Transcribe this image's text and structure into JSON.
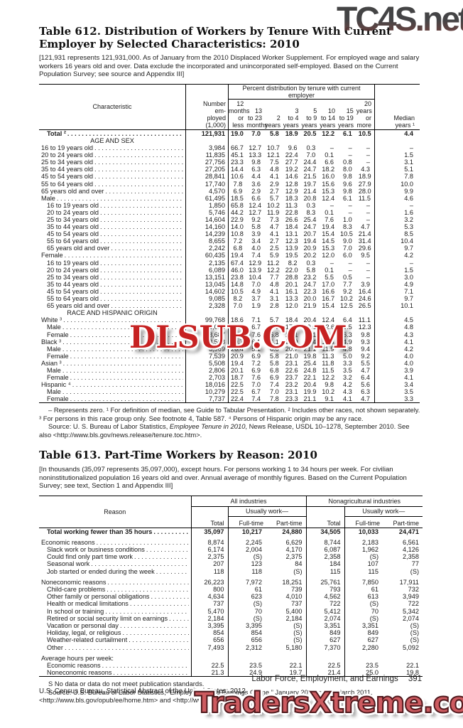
{
  "colors": {
    "watermark_mid_red": "#c62222",
    "watermark_bottom_rose": "#cd5b60",
    "watermark_top_gray": "#39393b",
    "rule_black": "#000000"
  },
  "watermarks": {
    "top": "TC4S.net",
    "middle": "DLSUB.COM",
    "bottom": "TradersXtreme.com"
  },
  "table612": {
    "title": "Table 612. Distribution of Workers by Tenure With Current Employer by Selected Characteristics: 2010",
    "note": "[121,931 represents 121,931,000. As of January from the 2010 Displaced Worker Supplement. For employed wage and salary workers 16 years  old and over. Data exclude the incorporated and unincorporated self-employed. Based on the Current Population Survey; see source and Appendix III]",
    "header": {
      "characteristic": "Characteristic",
      "number_employed": "Number\nem-\nployed\n(1,000)",
      "group": "Percent distribution by tenure with current employer",
      "columns": [
        "12\nmonths\nor less",
        "13\nto 23\nmonths",
        "2\nyears",
        "3\nto 4\nyears",
        "5\nto 9\nyears",
        "10\nto 14\nyears",
        "15\nto 19\nyears",
        "20\nyears\nor more"
      ],
      "median": "Median\nyears ¹"
    },
    "rows": [
      {
        "label": "Total ²",
        "style": "total",
        "indent": 1,
        "values": [
          "121,931",
          "19.0",
          "7.0",
          "5.8",
          "18.9",
          "20.5",
          "12.2",
          "6.1",
          "10.5",
          "4.4"
        ]
      },
      {
        "label": "AGE AND SEX",
        "style": "section"
      },
      {
        "label": "16 to 19 years old",
        "indent": 0,
        "values": [
          "3,984",
          "66.7",
          "12.7",
          "10.7",
          "9.6",
          "0.3",
          "–",
          "–",
          "–",
          "–"
        ]
      },
      {
        "label": "20 to 24 years old",
        "indent": 0,
        "values": [
          "11,835",
          "45.1",
          "13.3",
          "12.1",
          "22.4",
          "7.0",
          "0.1",
          "–",
          "–",
          "1.5"
        ]
      },
      {
        "label": "25 to 34 years old",
        "indent": 0,
        "values": [
          "27,756",
          "23.3",
          "9.8",
          "7.5",
          "27.7",
          "24.4",
          "6.6",
          "0.8",
          "–",
          "3.1"
        ]
      },
      {
        "label": "35 to 44 years old",
        "indent": 0,
        "values": [
          "27,205",
          "14.4",
          "6.3",
          "4.8",
          "19.2",
          "24.7",
          "18.2",
          "8.0",
          "4.3",
          "5.1"
        ]
      },
      {
        "label": "45 to 54 years old",
        "indent": 0,
        "values": [
          "28,841",
          "10.6",
          "4.4",
          "4.1",
          "14.6",
          "21.5",
          "16.0",
          "9.8",
          "18.9",
          "7.8"
        ]
      },
      {
        "label": "55 to 64 years old",
        "indent": 0,
        "values": [
          "17,740",
          "7.8",
          "3.6",
          "2.9",
          "12.8",
          "19.7",
          "15.6",
          "9.6",
          "27.9",
          "10.0"
        ]
      },
      {
        "label": "65 years old and over",
        "indent": 0,
        "values": [
          "4,570",
          "6.9",
          "2.9",
          "2.7",
          "12.9",
          "21.4",
          "15.3",
          "9.8",
          "28.0",
          "9.9"
        ]
      },
      {
        "label": "Male",
        "indent": 0,
        "values": [
          "61,495",
          "18.5",
          "6.6",
          "5.7",
          "18.3",
          "20.8",
          "12.4",
          "6.1",
          "11.5",
          "4.6"
        ]
      },
      {
        "label": "16 to 19 years old",
        "indent": 1,
        "values": [
          "1,850",
          "65.8",
          "12.4",
          "10.2",
          "11.3",
          "0.3",
          "–",
          "–",
          "–",
          "–"
        ]
      },
      {
        "label": "20 to 24 years old",
        "indent": 1,
        "values": [
          "5,746",
          "44.2",
          "12.7",
          "11.9",
          "22.8",
          "8.3",
          "0.1",
          "–",
          "–",
          "1.6"
        ]
      },
      {
        "label": "25 to 34 years old",
        "indent": 1,
        "values": [
          "14,604",
          "22.9",
          "9.2",
          "7.3",
          "26.6",
          "25.4",
          "7.6",
          "1.0",
          "–",
          "3.2"
        ]
      },
      {
        "label": "35 to 44 years old",
        "indent": 1,
        "values": [
          "14,160",
          "14.0",
          "5.8",
          "4.7",
          "18.4",
          "24.7",
          "19.4",
          "8.3",
          "4.7",
          "5.3"
        ]
      },
      {
        "label": "45 to 54 years old",
        "indent": 1,
        "values": [
          "14,239",
          "10.8",
          "3.9",
          "4.1",
          "13.1",
          "20.7",
          "15.4",
          "10.5",
          "21.4",
          "8.5"
        ]
      },
      {
        "label": "55 to 64 years old",
        "indent": 1,
        "values": [
          "8,655",
          "7.2",
          "3.4",
          "2.7",
          "12.3",
          "19.4",
          "14.5",
          "9.0",
          "31.4",
          "10.4"
        ]
      },
      {
        "label": "65 years old and over",
        "indent": 1,
        "values": [
          "2,242",
          "6.8",
          "4.0",
          "2.5",
          "13.9",
          "20.9",
          "15.3",
          "7.0",
          "29.6",
          "9.7"
        ]
      },
      {
        "label": "Female",
        "indent": 0,
        "values": [
          "60,435",
          "19.4",
          "7.4",
          "5.9",
          "19.5",
          "20.2",
          "12.0",
          "6.0",
          "9.5",
          "4.2"
        ]
      },
      {
        "label": "16 to 19 years old",
        "indent": 1,
        "values": [
          "2,135",
          "67.4",
          "12.9",
          "11.2",
          "8.2",
          "0.3",
          "–",
          "–",
          "–",
          "–"
        ]
      },
      {
        "label": "20 to 24 years old",
        "indent": 1,
        "values": [
          "6,089",
          "46.0",
          "13.9",
          "12.2",
          "22.0",
          "5.8",
          "0.1",
          "–",
          "–",
          "1.5"
        ]
      },
      {
        "label": "25 to 34 years old",
        "indent": 1,
        "values": [
          "13,151",
          "23.8",
          "10.4",
          "7.7",
          "28.8",
          "23.2",
          "5.5",
          "0.5",
          "–",
          "3.0"
        ]
      },
      {
        "label": "35 to 44 years old",
        "indent": 1,
        "values": [
          "13,045",
          "14.8",
          "7.0",
          "4.8",
          "20.1",
          "24.7",
          "17.0",
          "7.7",
          "3.9",
          "4.9"
        ]
      },
      {
        "label": "45 to 54 years old",
        "indent": 1,
        "values": [
          "14,602",
          "10.5",
          "4.9",
          "4.1",
          "16.1",
          "22.3",
          "16.6",
          "9.2",
          "16.4",
          "7.1"
        ]
      },
      {
        "label": "55 to 64 years old",
        "indent": 1,
        "values": [
          "9,085",
          "8.2",
          "3.7",
          "3.1",
          "13.3",
          "20.0",
          "16.7",
          "10.2",
          "24.6",
          "9.7"
        ]
      },
      {
        "label": "65 years old and over",
        "indent": 1,
        "values": [
          "2,328",
          "7.0",
          "1.9",
          "2.8",
          "12.0",
          "21.9",
          "15.4",
          "12.5",
          "26.5",
          "10.1"
        ]
      },
      {
        "label": "RACE AND HISPANIC ORIGIN",
        "style": "section"
      },
      {
        "label": "White ³",
        "indent": 0,
        "values": [
          "99,768",
          "18.6",
          "7.1",
          "5.7",
          "18.4",
          "20.4",
          "12.4",
          "6.4",
          "11.1",
          "4.5"
        ]
      },
      {
        "label": "Male",
        "indent": 1,
        "values": [
          "51,081",
          "18.1",
          "6.7",
          "5.6",
          "17.7",
          "20.6",
          "12.6",
          "6.5",
          "12.3",
          "4.8"
        ]
      },
      {
        "label": "Female",
        "indent": 1,
        "values": [
          "48,687",
          "19.2",
          "7.6",
          "5.8",
          "19.1",
          "20.1",
          "12.1",
          "6.3",
          "9.8",
          "4.3"
        ]
      },
      {
        "label": "Black ³",
        "indent": 0,
        "values": [
          "13,508",
          "20.7",
          "6.1",
          "6.1",
          "20.9",
          "20.4",
          "11.6",
          "4.9",
          "9.3",
          "4.1"
        ]
      },
      {
        "label": "Male",
        "indent": 1,
        "values": [
          "5,969",
          "20.4",
          "5.1",
          "6.6",
          "20.7",
          "21.1",
          "11.9",
          "4.8",
          "9.4",
          "4.2"
        ]
      },
      {
        "label": "Female",
        "indent": 1,
        "values": [
          "7,539",
          "20.9",
          "6.9",
          "5.8",
          "21.0",
          "19.8",
          "11.3",
          "5.0",
          "9.2",
          "4.0"
        ]
      },
      {
        "label": "Asian ³",
        "indent": 0,
        "values": [
          "5,508",
          "19.4",
          "7.2",
          "5.8",
          "23.1",
          "25.4",
          "11.8",
          "3.3",
          "5.5",
          "4.0"
        ]
      },
      {
        "label": "Male",
        "indent": 1,
        "values": [
          "2,806",
          "20.1",
          "6.9",
          "6.8",
          "22.6",
          "24.8",
          "11.5",
          "3.5",
          "4.7",
          "3.9"
        ]
      },
      {
        "label": "Female",
        "indent": 1,
        "values": [
          "2,703",
          "18.7",
          "7.6",
          "6.9",
          "23.7",
          "22.1",
          "12.2",
          "3.2",
          "6.4",
          "4.1"
        ]
      },
      {
        "label": "Hispanic ⁴",
        "indent": 0,
        "values": [
          "18,016",
          "22.5",
          "7.0",
          "7.4",
          "23.2",
          "20.4",
          "9.8",
          "4.2",
          "5.6",
          "3.4"
        ]
      },
      {
        "label": "Male",
        "indent": 1,
        "values": [
          "10,279",
          "22.5",
          "6.7",
          "7.0",
          "23.1",
          "19.9",
          "10.2",
          "4.3",
          "6.3",
          "3.5"
        ]
      },
      {
        "label": "Female",
        "indent": 1,
        "values": [
          "7,737",
          "22.4",
          "7.4",
          "7.8",
          "23.3",
          "21.1",
          "9.1",
          "4.1",
          "4.7",
          "3.3"
        ]
      }
    ],
    "footnotes": {
      "symbols": "– Represents zero. ¹ For definition of median, see Guide to Tabular Presentation. ² Includes other races, not shown separately. ³ For persons in this race group only. See footnote 4, Table 587. ⁴ Persons of Hispanic origin may be any race.",
      "source_prefix": "Source: U. S. Bureau of Labor Statistics, ",
      "source_italic": "Employee Tenure in 2010",
      "source_suffix": ", News Release, USDL 10–1278, September 2010. See also <http://www.bls.gov/news.release/tenure.toc.htm>."
    }
  },
  "table613": {
    "title": "Table 613. Part-Time Workers by Reason: 2010",
    "note": "[In thousands (35,097 represents 35,097,000), except hours. For persons working 1 to 34 hours per week. For civilian noninstitutionalized population 16 years old and over. Annual average of monthly figures. Based on the Current Population Survey; see text, Section 1 and Appendix III]",
    "header": {
      "reason": "Reason",
      "group1": "All industries",
      "group2": "Nonagricultural industries",
      "usually_work": "Usually work—",
      "columns": [
        "Total",
        "Full-time",
        "Part-time"
      ]
    },
    "rows": [
      {
        "label": "Total working fewer than 35 hours",
        "style": "total",
        "indent": 1,
        "values": [
          "35,097",
          "10,217",
          "24,880",
          "34,505",
          "10,033",
          "24,471"
        ]
      },
      {
        "label": "Economic reasons",
        "indent": 0,
        "gap": true,
        "values": [
          "8,874",
          "2,245",
          "6,629",
          "8,744",
          "2,183",
          "6,561"
        ]
      },
      {
        "label": "Slack work or business conditions",
        "indent": 1,
        "values": [
          "6,174",
          "2,004",
          "4,170",
          "6,087",
          "1,962",
          "4,126"
        ]
      },
      {
        "label": "Could find only part time work",
        "indent": 1,
        "values": [
          "2,375",
          "(S)",
          "2,375",
          "2,358",
          "(S)",
          "2,358"
        ]
      },
      {
        "label": "Seasonal work",
        "indent": 1,
        "values": [
          "207",
          "123",
          "84",
          "184",
          "107",
          "77"
        ]
      },
      {
        "label": "Job started or ended during the week",
        "indent": 1,
        "values": [
          "118",
          "118",
          "(S)",
          "115",
          "115",
          "(S)"
        ]
      },
      {
        "label": "Noneconomic reasons",
        "indent": 0,
        "gap": true,
        "values": [
          "26,223",
          "7,972",
          "18,251",
          "25,761",
          "7,850",
          "17,911"
        ]
      },
      {
        "label": "Child-care problems",
        "indent": 1,
        "values": [
          "800",
          "61",
          "739",
          "793",
          "61",
          "732"
        ]
      },
      {
        "label": "Other family or personal obligations",
        "indent": 1,
        "values": [
          "4,634",
          "623",
          "4,010",
          "4,562",
          "613",
          "3,949"
        ]
      },
      {
        "label": "Health or medical limitations",
        "indent": 1,
        "values": [
          "737",
          "(S)",
          "737",
          "722",
          "(S)",
          "722"
        ]
      },
      {
        "label": "In school or training",
        "indent": 1,
        "values": [
          "5,470",
          "70",
          "5,400",
          "5,412",
          "70",
          "5,342"
        ]
      },
      {
        "label": "Retired or social security limit on earnings",
        "indent": 1,
        "values": [
          "2,184",
          "(S)",
          "2,184",
          "2,074",
          "(S)",
          "2,074"
        ]
      },
      {
        "label": "Vacation or personal day",
        "indent": 1,
        "values": [
          "3,395",
          "3,395",
          "(S)",
          "3,351",
          "3,351",
          "(S)"
        ]
      },
      {
        "label": "Holiday, legal, or religious",
        "indent": 1,
        "values": [
          "854",
          "854",
          "(S)",
          "849",
          "849",
          "(S)"
        ]
      },
      {
        "label": "Weather-related curtailment",
        "indent": 1,
        "values": [
          "656",
          "656",
          "(S)",
          "627",
          "627",
          "(S)"
        ]
      },
      {
        "label": "Other",
        "indent": 1,
        "values": [
          "7,493",
          "2,312",
          "5,180",
          "7,370",
          "2,280",
          "5,092"
        ]
      },
      {
        "label": "Average hours per week:",
        "style": "plainlabel",
        "indent": 0,
        "gap": true
      },
      {
        "label": "Economic reasons",
        "indent": 1,
        "values": [
          "22.5",
          "23.5",
          "22.1",
          "22.5",
          "23.5",
          "22.1"
        ]
      },
      {
        "label": "Noneconomic reasons",
        "indent": 1,
        "values": [
          "21.3",
          "24.9",
          "19.7",
          "21.4",
          "25.0",
          "19.8"
        ]
      }
    ],
    "footnotes": {
      "s_note": "S No data or data do not meet publication standards.",
      "source": "Source: U.S. Bureau of Labor Statistics, “Employment and Earnings Online,” January 2011 issue, March 2011, <http://www.bls.gov/opub/ee/home.htm> and <http://www.bls.gov/cps/home.htm>."
    }
  },
  "page_footer": {
    "chapter_title": "Labor Force, Employment, and Earnings",
    "page_number": "391",
    "imprint": "U.S. Census Bureau, Statistical Abstract of the United States: 2012"
  }
}
